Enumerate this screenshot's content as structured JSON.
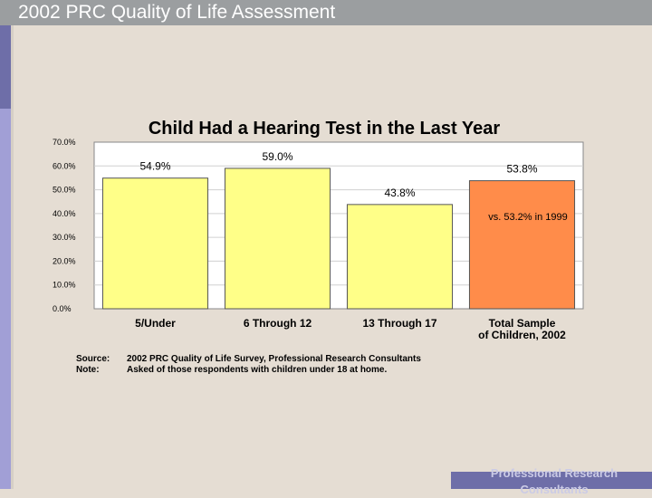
{
  "header": {
    "title": "2002 PRC Quality of Life Assessment"
  },
  "footer": {
    "text": "Professional Research Consultants"
  },
  "notes": {
    "source_key": "Source:",
    "source_text": "2002 PRC Quality of Life Survey, Professional Research Consultants",
    "note_key": "Note:",
    "note_text": "Asked of those respondents with children under 18 at home."
  },
  "colors": {
    "bar": "#ffff88",
    "highlight_bar": "#ff8c4a",
    "bar_stroke": "#555555"
  },
  "chart_data": {
    "type": "bar",
    "title": "Child Had a Hearing Test in the Last Year",
    "categories": [
      "5/Under",
      "6 Through 12",
      "13 Through 17",
      "Total Sample of Children, 2002"
    ],
    "category_lines": [
      [
        "5/Under"
      ],
      [
        "6 Through 12"
      ],
      [
        "13 Through 17"
      ],
      [
        "Total Sample",
        "of Children, 2002"
      ]
    ],
    "values": [
      54.9,
      59.0,
      43.8,
      53.8
    ],
    "value_labels": [
      "54.9%",
      "59.0%",
      "43.8%",
      "53.8%"
    ],
    "highlight_index": 3,
    "ylim": [
      0,
      70
    ],
    "yticks": [
      0,
      10,
      20,
      30,
      40,
      50,
      60,
      70
    ],
    "ytick_labels": [
      "0.0%",
      "10.0%",
      "20.0%",
      "30.0%",
      "40.0%",
      "50.0%",
      "60.0%",
      "70.0%"
    ],
    "grid": true,
    "annotation": "vs. 53.2% in 1999"
  }
}
